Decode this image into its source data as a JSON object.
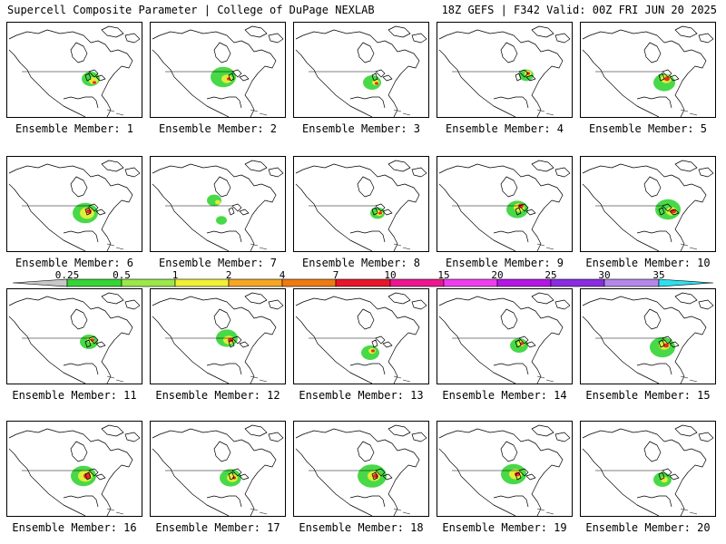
{
  "header": {
    "left": "Supercell Composite Parameter | College of DuPage NEXLAB",
    "right": "18Z GEFS | F342 Valid: 00Z FRI JUN 20 2025"
  },
  "members": [
    {
      "label": "Ensemble Member: 1"
    },
    {
      "label": "Ensemble Member: 2"
    },
    {
      "label": "Ensemble Member: 3"
    },
    {
      "label": "Ensemble Member: 4"
    },
    {
      "label": "Ensemble Member: 5"
    },
    {
      "label": "Ensemble Member: 6"
    },
    {
      "label": "Ensemble Member: 7"
    },
    {
      "label": "Ensemble Member: 8"
    },
    {
      "label": "Ensemble Member: 9"
    },
    {
      "label": "Ensemble Member: 10"
    },
    {
      "label": "Ensemble Member: 11"
    },
    {
      "label": "Ensemble Member: 12"
    },
    {
      "label": "Ensemble Member: 13"
    },
    {
      "label": "Ensemble Member: 14"
    },
    {
      "label": "Ensemble Member: 15"
    },
    {
      "label": "Ensemble Member: 16"
    },
    {
      "label": "Ensemble Member: 17"
    },
    {
      "label": "Ensemble Member: 18"
    },
    {
      "label": "Ensemble Member: 19"
    },
    {
      "label": "Ensemble Member: 20"
    }
  ],
  "colorbar": {
    "ticks": [
      "0.25",
      "0.5",
      "1",
      "2",
      "4",
      "7",
      "10",
      "15",
      "20",
      "25",
      "30",
      "35"
    ],
    "colors": [
      "#c8c8c8",
      "#34d534",
      "#9be84a",
      "#f0f036",
      "#f5a623",
      "#ee7a12",
      "#e8162a",
      "#ec1790",
      "#f03cf0",
      "#b516e6",
      "#8a2be2",
      "#b488e8",
      "#2ee0ee"
    ]
  }
}
